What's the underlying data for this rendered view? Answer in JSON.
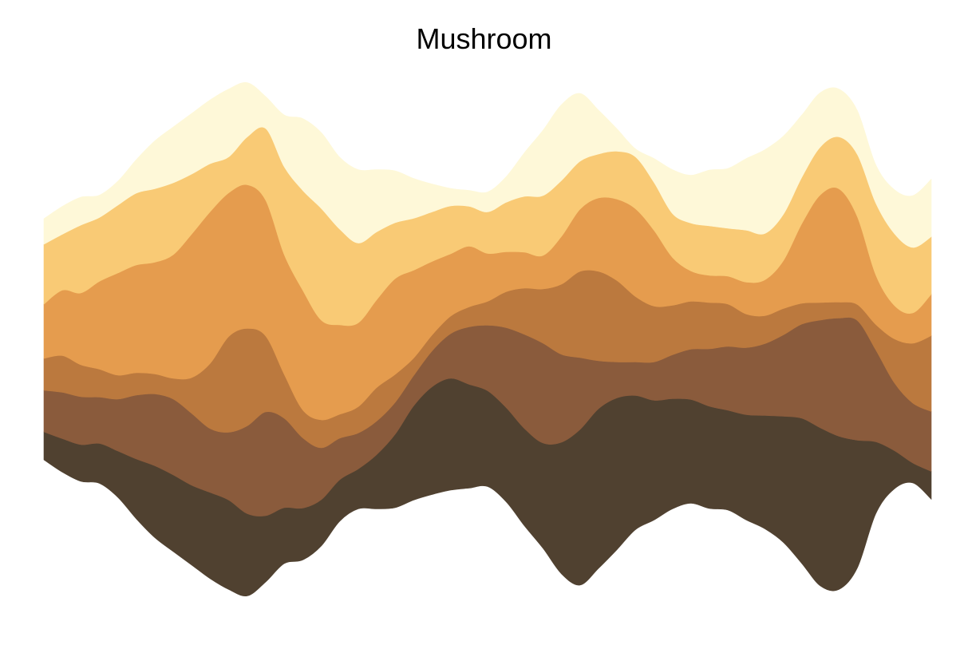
{
  "chart_data": {
    "type": "area",
    "subtype": "streamgraph",
    "title": "Mushroom",
    "xlabel": "",
    "ylabel": "",
    "axes_visible": false,
    "grid": false,
    "legend": "none",
    "x": [
      0,
      1,
      2,
      3,
      4,
      5,
      6,
      7,
      8,
      9,
      10,
      11,
      12,
      13,
      14,
      15,
      16,
      17,
      18,
      19,
      20,
      21,
      22,
      23,
      24,
      25,
      26,
      27,
      28,
      29,
      30,
      31,
      32,
      33,
      34,
      35,
      36,
      37,
      38,
      39,
      40,
      41,
      42,
      43,
      44,
      45,
      46,
      47,
      48
    ],
    "series": [
      {
        "color": "#504130",
        "values": [
          35,
          42,
          46,
          50,
          58,
          75,
          90,
          96,
          100,
          108,
          112,
          103,
          83,
          70,
          65,
          58,
          52,
          50,
          68,
          92,
          118,
          135,
          140,
          130,
          120,
          118,
          122,
          132,
          165,
          195,
          200,
          190,
          168,
          150,
          138,
          130,
          128,
          125,
          132,
          142,
          158,
          182,
          198,
          192,
          160,
          90,
          48,
          25,
          35
        ]
      },
      {
        "color": "#8A5B3C",
        "values": [
          52,
          58,
          60,
          58,
          65,
          80,
          90,
          95,
          90,
          80,
          85,
          110,
          130,
          112,
          88,
          65,
          52,
          45,
          42,
          40,
          38,
          45,
          56,
          72,
          82,
          100,
          118,
          125,
          110,
          90,
          60,
          45,
          42,
          48,
          55,
          63,
          72,
          80,
          84,
          90,
          102,
          118,
          135,
          148,
          150,
          115,
          85,
          75,
          75
        ]
      },
      {
        "color": "#BB793E",
        "values": [
          40,
          46,
          40,
          35,
          30,
          28,
          25,
          26,
          45,
          82,
          120,
          122,
          95,
          55,
          35,
          35,
          30,
          33,
          42,
          35,
          22,
          20,
          22,
          25,
          30,
          45,
          58,
          68,
          88,
          108,
          112,
          102,
          82,
          70,
          62,
          60,
          58,
          53,
          42,
          35,
          33,
          26,
          22,
          20,
          20,
          32,
          55,
          75,
          95
        ]
      },
      {
        "color": "#E59C4E",
        "values": [
          68,
          82,
          90,
          110,
          128,
          135,
          140,
          155,
          180,
          190,
          180,
          180,
          170,
          150,
          150,
          125,
          112,
          105,
          110,
          120,
          110,
          92,
          78,
          76,
          60,
          50,
          45,
          42,
          60,
          78,
          92,
          102,
          110,
          95,
          60,
          38,
          34,
          35,
          40,
          45,
          60,
          100,
          135,
          142,
          110,
          62,
          42,
          38,
          52
        ]
      },
      {
        "color": "#F9CA75",
        "values": [
          75,
          70,
          85,
          80,
          85,
          90,
          92,
          90,
          75,
          60,
          45,
          60,
          90,
          110,
          125,
          140,
          120,
          100,
          85,
          70,
          65,
          62,
          60,
          50,
          52,
          62,
          70,
          75,
          70,
          60,
          55,
          60,
          65,
          60,
          55,
          60,
          62,
          60,
          65,
          58,
          58,
          58,
          60,
          65,
          78,
          90,
          90,
          82,
          72
        ]
      },
      {
        "color": "#FEF8D8",
        "values": [
          32,
          35,
          35,
          28,
          30,
          42,
          60,
          70,
          76,
          80,
          85,
          68,
          40,
          65,
          90,
          95,
          90,
          92,
          78,
          65,
          50,
          35,
          22,
          20,
          25,
          32,
          55,
          82,
          95,
          85,
          55,
          28,
          10,
          30,
          55,
          60,
          70,
          75,
          90,
          105,
          98,
          78,
          68,
          60,
          55,
          48,
          55,
          65,
          72
        ]
      }
    ]
  }
}
